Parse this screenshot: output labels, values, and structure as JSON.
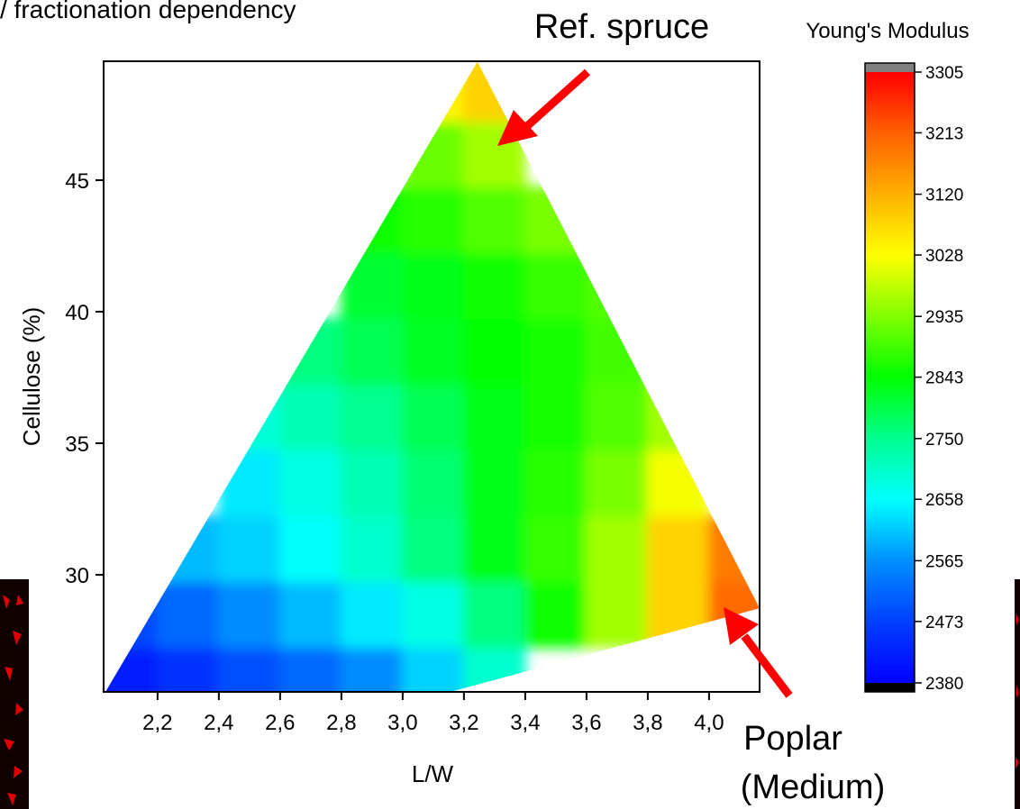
{
  "chart_data": {
    "type": "contour",
    "title": "/ fractionation dependency",
    "xlabel": "L/W",
    "ylabel": "Cellulose (%)",
    "xlim": [
      2.024,
      4.165
    ],
    "ylim": [
      25.55,
      49.52
    ],
    "xticks": [
      {
        "value": 2.2,
        "label": "2,2"
      },
      {
        "value": 2.4,
        "label": "2,4"
      },
      {
        "value": 2.6,
        "label": "2,6"
      },
      {
        "value": 2.8,
        "label": "2,8"
      },
      {
        "value": 3.0,
        "label": "3,0"
      },
      {
        "value": 3.2,
        "label": "3,2"
      },
      {
        "value": 3.4,
        "label": "3,4"
      },
      {
        "value": 3.6,
        "label": "3,6"
      },
      {
        "value": 3.8,
        "label": "3,8"
      },
      {
        "value": 4.0,
        "label": "4,0"
      }
    ],
    "yticks": [
      30,
      35,
      40,
      45
    ],
    "region": [
      [
        2.03,
        25.55
      ],
      [
        3.244,
        49.5
      ],
      [
        4.165,
        28.73
      ],
      [
        3.156,
        25.55
      ]
    ],
    "x": [
      2.1,
      2.3,
      2.5,
      2.7,
      2.9,
      3.1,
      3.3,
      3.5,
      3.7,
      3.9,
      4.1
    ],
    "y": [
      26,
      28.5,
      31,
      33.5,
      36,
      38.5,
      41,
      43.5,
      46,
      48.5
    ],
    "z": [
      [
        2420,
        2450,
        2490,
        2520,
        2560,
        2620,
        2700,
        null,
        null,
        null,
        null
      ],
      [
        2480,
        2520,
        2560,
        2600,
        2640,
        2680,
        2760,
        2850,
        2960,
        3080,
        3200
      ],
      [
        null,
        2600,
        2620,
        2660,
        2700,
        2760,
        2830,
        2880,
        2960,
        3080,
        3180
      ],
      [
        null,
        null,
        2640,
        2680,
        2720,
        2770,
        2830,
        2870,
        2930,
        3020,
        null
      ],
      [
        null,
        null,
        2690,
        2720,
        2750,
        2790,
        2830,
        2860,
        2900,
        2960,
        null
      ],
      [
        null,
        null,
        null,
        2760,
        2790,
        2820,
        2840,
        2860,
        2890,
        null,
        null
      ],
      [
        null,
        null,
        null,
        null,
        2810,
        2830,
        2850,
        2880,
        2900,
        null,
        null
      ],
      [
        null,
        null,
        null,
        null,
        2850,
        2870,
        2900,
        2930,
        null,
        null,
        null
      ],
      [
        null,
        null,
        null,
        null,
        null,
        2920,
        2960,
        null,
        null,
        null,
        null
      ],
      [
        null,
        null,
        null,
        null,
        null,
        3040,
        3080,
        null,
        null,
        null,
        null
      ]
    ],
    "colorbar": {
      "title": "Young's Modulus",
      "lim": [
        2380,
        3305
      ],
      "ticks": [
        2380,
        2473,
        2565,
        2658,
        2750,
        2843,
        2935,
        3028,
        3120,
        3213,
        3305
      ],
      "colors": [
        "#0000ff",
        "#0040ff",
        "#0090ff",
        "#00ffff",
        "#00ff90",
        "#00ff00",
        "#80ff00",
        "#ffff00",
        "#ffb000",
        "#ff6000",
        "#ff0000"
      ],
      "over_color": "#808080",
      "under_color": "#000000"
    },
    "annotations": [
      {
        "text": "Ref. spruce"
      },
      {
        "lines": [
          "Poplar",
          "(Medium)"
        ]
      }
    ]
  }
}
